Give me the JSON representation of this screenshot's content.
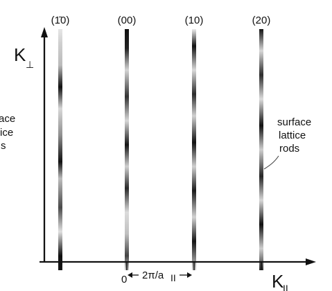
{
  "diagram": {
    "rods": [
      {
        "label": "(1̄0)",
        "name": "rod-bar-1-0"
      },
      {
        "label": "(00)",
        "name": "rod-00"
      },
      {
        "label": "(10)",
        "name": "rod-10"
      },
      {
        "label": "(20)",
        "name": "rod-20"
      }
    ],
    "axes": {
      "vertical": {
        "symbol": "K",
        "subscript": "⊥"
      },
      "horizontal": {
        "symbol": "K",
        "subscript": "II"
      },
      "origin_label": "0"
    },
    "spacing_label": "2π/a",
    "spacing_subscript": "II",
    "right_annotation": [
      "surface",
      "lattice",
      "rods"
    ],
    "left_annotation": [
      "ace",
      "ice",
      "s"
    ],
    "colors": {
      "rod_dark": "#111111",
      "rod_light": "#dcdcdc",
      "axis": "#111111"
    }
  }
}
